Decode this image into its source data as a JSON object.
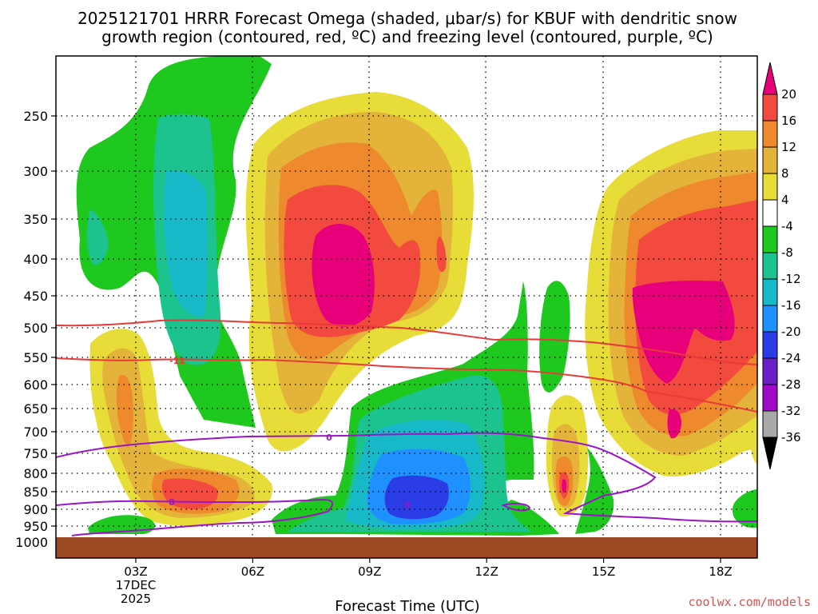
{
  "title": {
    "line1": "2025121701 HRRR Forecast Omega (shaded, μbar/s) for KBUF with dendritic snow",
    "line2": "growth region (contoured, red, ºC) and freezing level (contoured, purple, ºC)"
  },
  "chart_data": {
    "type": "heatmap",
    "title": "2025121701 HRRR Forecast Omega (shaded, μbar/s) for KBUF with dendritic snow growth region (contoured, red, ºC) and freezing level (contoured, purple, ºC)",
    "xlabel": "Forecast Time (UTC)",
    "ylabel": "",
    "x_range_hours": [
      1,
      19
    ],
    "x_ticks": [
      {
        "hour": 3,
        "label": "03Z"
      },
      {
        "hour": 6,
        "label": "06Z"
      },
      {
        "hour": 9,
        "label": "09Z"
      },
      {
        "hour": 12,
        "label": "12Z"
      },
      {
        "hour": 15,
        "label": "15Z"
      },
      {
        "hour": 18,
        "label": "18Z"
      }
    ],
    "x_date_label": [
      "17DEC",
      "2025"
    ],
    "y_ticks_hpa": [
      250,
      300,
      350,
      400,
      450,
      500,
      550,
      600,
      650,
      700,
      750,
      800,
      850,
      900,
      950,
      1000
    ],
    "colorbar": {
      "labels": [
        "20",
        "16",
        "12",
        "8",
        "4",
        "-4",
        "-8",
        "-12",
        "-16",
        "-20",
        "-24",
        "-28",
        "-32",
        "-36"
      ],
      "colors": [
        "#e8007a",
        "#f24a3f",
        "#ee8a2d",
        "#e3b33a",
        "#e8dc38",
        "#ffffff",
        "#1ec81e",
        "#1cc38f",
        "#17b8c7",
        "#1e90ff",
        "#2a3ce6",
        "#6a1fc8",
        "#9e0bc8",
        "#a8a8a8",
        "#000000"
      ]
    },
    "omega_blobs": [
      {
        "name": "green-upper-left",
        "value_range": [
          -12,
          -4
        ],
        "hours": [
          2.0,
          5.5
        ],
        "hpa": [
          200,
          700
        ]
      },
      {
        "name": "upward-0630-0900",
        "value_range": [
          4,
          24
        ],
        "hours": [
          6.7,
          10.7
        ],
        "hpa": [
          240,
          700
        ]
      },
      {
        "name": "downward-0900-1200",
        "value_range": [
          -24,
          -4
        ],
        "hours": [
          8.6,
          13.0
        ],
        "hpa": [
          470,
          975
        ]
      },
      {
        "name": "upward-low-0300-0500",
        "value_range": [
          4,
          16
        ],
        "hours": [
          2.0,
          6.5
        ],
        "hpa": [
          560,
          955
        ]
      },
      {
        "name": "upward-1400",
        "value_range": [
          4,
          16
        ],
        "hours": [
          13.5,
          14.7
        ],
        "hpa": [
          600,
          920
        ]
      },
      {
        "name": "upward-1500-1900",
        "value_range": [
          4,
          24
        ],
        "hours": [
          14.8,
          19.0
        ],
        "hpa": [
          260,
          790
        ]
      }
    ],
    "contours": [
      {
        "name": "dendritic-12C",
        "color": "#e83a3a",
        "label": "-12"
      },
      {
        "name": "dendritic-18C",
        "color": "#e83a3a",
        "label": ""
      },
      {
        "name": "freezing-level-0C",
        "color": "#9a15c8",
        "label": "0"
      }
    ],
    "credit": "coolwx.com/models"
  }
}
